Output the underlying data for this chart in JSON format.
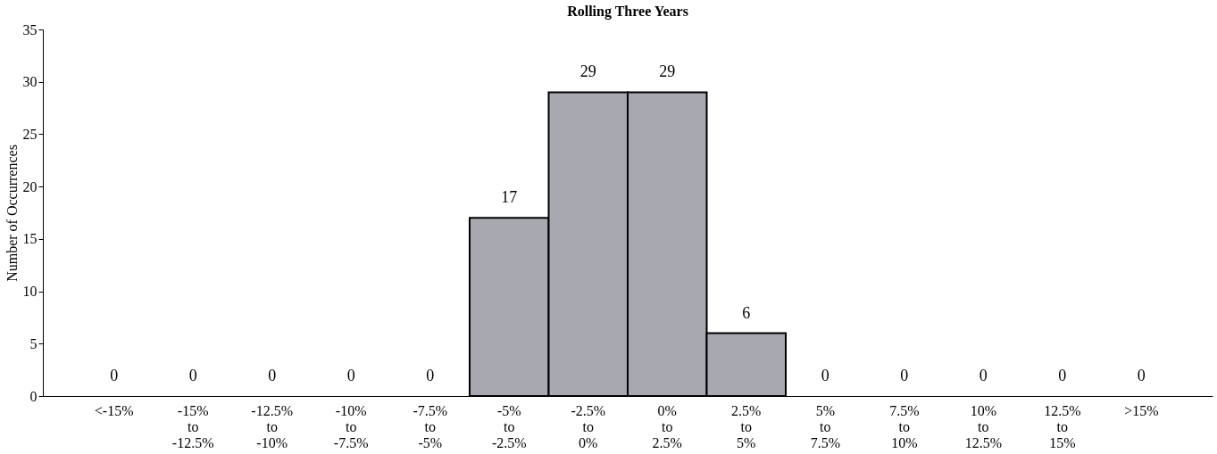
{
  "chart_data": {
    "type": "bar",
    "title": "Rolling Three Years",
    "ylabel": "Number of Occurrences",
    "categories": [
      "<-15%",
      "-15%\nto\n-12.5%",
      "-12.5%\nto\n-10%",
      "-10%\nto\n-7.5%",
      "-7.5%\nto\n-5%",
      "-5%\nto\n-2.5%",
      "-2.5%\nto\n0%",
      "0%\nto\n2.5%",
      "2.5%\nto\n5%",
      "5%\nto\n7.5%",
      "7.5%\nto\n10%",
      "10%\nto\n12.5%",
      "12.5%\nto\n15%",
      ">15%"
    ],
    "values": [
      0,
      0,
      0,
      0,
      0,
      17,
      29,
      29,
      6,
      0,
      0,
      0,
      0,
      0
    ],
    "color": "#a8a8b0",
    "ylim": [
      0,
      35
    ],
    "yticks": [
      0,
      5,
      10,
      15,
      20,
      25,
      30,
      35
    ],
    "grid": false,
    "data_labels": true
  }
}
